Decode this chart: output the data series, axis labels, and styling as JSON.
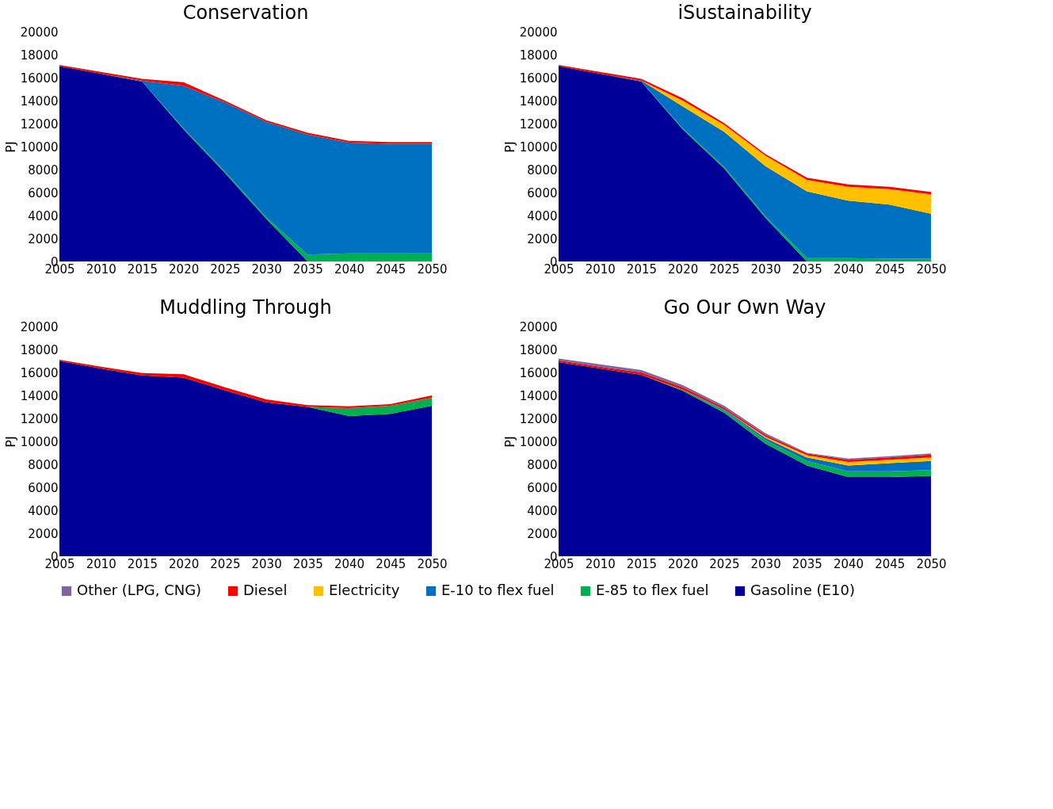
{
  "chart_data": [
    {
      "type": "area",
      "stacked": true,
      "title": "Conservation",
      "ylabel": "PJ",
      "legend": "bottom",
      "grid": false,
      "ylim": [
        0,
        20000
      ],
      "yticks": [
        0,
        2000,
        4000,
        6000,
        8000,
        10000,
        12000,
        14000,
        16000,
        18000,
        20000
      ],
      "categories": [
        "2005",
        "2010",
        "2015",
        "2020",
        "2025",
        "2030",
        "2035",
        "2040",
        "2045",
        "2050"
      ],
      "series": [
        {
          "name": "Gasoline (E10)",
          "color": "#000099",
          "values": [
            17000,
            16350,
            15650,
            11500,
            7700,
            3700,
            0,
            null,
            null,
            null
          ]
        },
        {
          "name": "E-85 to flex fuel",
          "color": "#00b050",
          "values": [
            null,
            null,
            0,
            100,
            150,
            150,
            600,
            700,
            700,
            700
          ]
        },
        {
          "name": "E-10 to flex fuel",
          "color": "#0070c0",
          "values": [
            null,
            0,
            100,
            3700,
            6000,
            8300,
            10450,
            9650,
            9550,
            9550
          ]
        },
        {
          "name": "Diesel",
          "color": "#ff0000",
          "values": [
            100,
            150,
            150,
            300,
            150,
            150,
            150,
            150,
            150,
            150
          ]
        }
      ]
    },
    {
      "type": "area",
      "stacked": true,
      "title": "iSustainability",
      "ylabel": "PJ",
      "legend": "bottom",
      "grid": false,
      "ylim": [
        0,
        20000
      ],
      "yticks": [
        0,
        2000,
        4000,
        6000,
        8000,
        10000,
        12000,
        14000,
        16000,
        18000,
        20000
      ],
      "categories": [
        "2005",
        "2010",
        "2015",
        "2020",
        "2025",
        "2030",
        "2035",
        "2040",
        "2045",
        "2050"
      ],
      "series": [
        {
          "name": "Gasoline (E10)",
          "color": "#000099",
          "values": [
            17000,
            16350,
            15650,
            11500,
            8100,
            3800,
            0,
            null,
            null,
            null
          ]
        },
        {
          "name": "E-85 to flex fuel",
          "color": "#00b050",
          "values": [
            null,
            null,
            0,
            100,
            150,
            150,
            300,
            300,
            250,
            250
          ]
        },
        {
          "name": "E-10 to flex fuel",
          "color": "#0070c0",
          "values": [
            null,
            0,
            100,
            1900,
            3050,
            4350,
            5800,
            5000,
            4700,
            3900
          ]
        },
        {
          "name": "Electricity",
          "color": "#ffc000",
          "values": [
            null,
            null,
            0,
            500,
            600,
            900,
            1000,
            1200,
            1350,
            1700
          ]
        },
        {
          "name": "Diesel",
          "color": "#ff0000",
          "values": [
            100,
            150,
            150,
            200,
            150,
            150,
            200,
            200,
            200,
            200
          ]
        }
      ]
    },
    {
      "type": "area",
      "stacked": true,
      "title": "Muddling Through",
      "ylabel": "PJ",
      "legend": "bottom",
      "grid": false,
      "ylim": [
        0,
        20000
      ],
      "yticks": [
        0,
        2000,
        4000,
        6000,
        8000,
        10000,
        12000,
        14000,
        16000,
        18000,
        20000
      ],
      "categories": [
        "2005",
        "2010",
        "2015",
        "2020",
        "2025",
        "2030",
        "2035",
        "2040",
        "2045",
        "2050"
      ],
      "series": [
        {
          "name": "Gasoline (E10)",
          "color": "#000099",
          "values": [
            17000,
            16350,
            15750,
            15550,
            14450,
            13400,
            13000,
            12200,
            12400,
            13100
          ]
        },
        {
          "name": "E-85 to flex fuel",
          "color": "#00b050",
          "values": [
            null,
            null,
            null,
            null,
            null,
            null,
            0,
            700,
            700,
            700
          ]
        },
        {
          "name": "Diesel",
          "color": "#ff0000",
          "values": [
            100,
            150,
            200,
            300,
            250,
            250,
            150,
            150,
            150,
            200
          ]
        }
      ]
    },
    {
      "type": "area",
      "stacked": true,
      "title": "Go Our Own Way",
      "ylabel": "PJ",
      "legend": "bottom",
      "grid": false,
      "ylim": [
        0,
        20000
      ],
      "yticks": [
        0,
        2000,
        4000,
        6000,
        8000,
        10000,
        12000,
        14000,
        16000,
        18000,
        20000
      ],
      "categories": [
        "2005",
        "2010",
        "2015",
        "2020",
        "2025",
        "2030",
        "2035",
        "2040",
        "2045",
        "2050"
      ],
      "series": [
        {
          "name": "Gasoline (E10)",
          "color": "#000099",
          "values": [
            16900,
            16350,
            15800,
            14400,
            12500,
            9800,
            7900,
            6900,
            6900,
            7000
          ]
        },
        {
          "name": "E-85 to flex fuel",
          "color": "#00b050",
          "values": [
            null,
            null,
            0,
            100,
            200,
            300,
            400,
            500,
            500,
            500
          ]
        },
        {
          "name": "E-10 to flex fuel",
          "color": "#0070c0",
          "values": [
            null,
            null,
            null,
            0,
            100,
            200,
            300,
            500,
            700,
            800
          ]
        },
        {
          "name": "Electricity",
          "color": "#ffc000",
          "values": [
            null,
            null,
            null,
            null,
            0,
            100,
            200,
            300,
            300,
            300
          ]
        },
        {
          "name": "Diesel",
          "color": "#ff0000",
          "values": [
            150,
            150,
            200,
            200,
            150,
            150,
            150,
            200,
            200,
            250
          ]
        },
        {
          "name": "Other (LPG, CNG)",
          "color": "#8064a2",
          "values": [
            150,
            200,
            200,
            200,
            150,
            150,
            50,
            100,
            100,
            100
          ]
        }
      ]
    }
  ]
}
